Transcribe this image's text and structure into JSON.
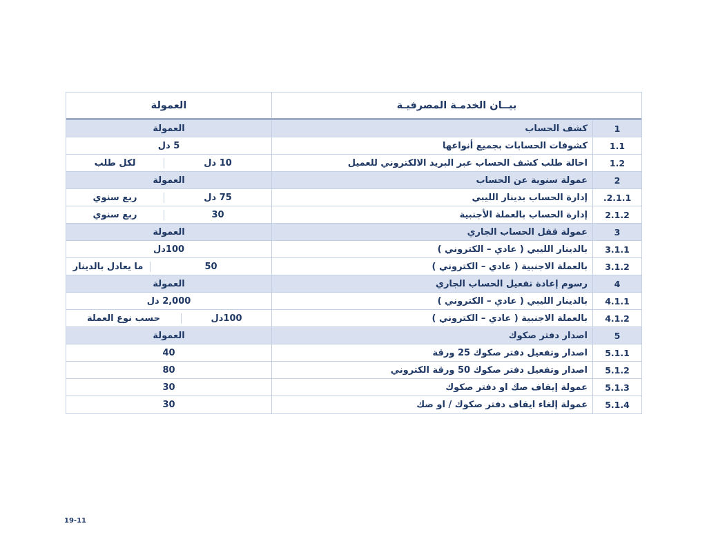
{
  "page": {
    "number_label": "19-11"
  },
  "colors": {
    "text": "#1f3864",
    "section_row_shade": "#d9e1f1",
    "grid_line": "#c3cfe2",
    "header_rule": "#9dadc7"
  },
  "table": {
    "header": {
      "fee": "العمولة",
      "service": "بيــان الخدمـة المصرفيـة"
    },
    "rows": [
      {
        "num": "1",
        "service": "كشف الحساب",
        "fee": {
          "value": "العمولة"
        },
        "section": true
      },
      {
        "num": "1.1",
        "service": "كشوفات الحسابات بجميع أنواعها",
        "fee": {
          "value": "5 دل"
        },
        "section": false
      },
      {
        "num": "1.2",
        "service": "احالة طلب كشف الحساب عبر البريد الالكتروني للعميل",
        "fee": {
          "value": "10 دل",
          "note": "لكل طلب"
        },
        "section": false
      },
      {
        "num": "2",
        "service": "عمولة سنوية عن الحساب",
        "fee": {
          "value": "العمولة"
        },
        "section": true
      },
      {
        "num": "2.1.1.",
        "service": "إدارة الحساب بدينار الليبي",
        "fee": {
          "value": "75 دل",
          "note": "ربع سنوي"
        },
        "section": false
      },
      {
        "num": "2.1.2",
        "service": "إدارة الحساب بالعملة الأجنبية",
        "fee": {
          "value": "30",
          "note": "ربع سنوي"
        },
        "section": false
      },
      {
        "num": "3",
        "service": "عمولة قفل الحساب الجاري",
        "fee": {
          "value": "العمولة"
        },
        "section": true
      },
      {
        "num": "3.1.1",
        "service": "بالدينار الليبي ( عادي – الكتروني )",
        "fee": {
          "value": "100دل"
        },
        "section": false
      },
      {
        "num": "3.1.2",
        "service": "بالعملة الاجنبية   ( عادي – الكتروني )",
        "fee": {
          "value": "50",
          "note": "ما يعادل بالدينار"
        },
        "section": false
      },
      {
        "num": "4",
        "service": "رسوم إعادة تفعيل الحساب الجاري",
        "fee": {
          "value": "العمولة"
        },
        "section": true
      },
      {
        "num": "4.1.1",
        "service": "بالدينار الليبي ( عادي – الكتروني )",
        "fee": {
          "value": "2,000 دل"
        },
        "section": false
      },
      {
        "num": "4.1.2",
        "service": "بالعملة الاجنبية  ( عادي – الكتروني )",
        "fee": {
          "value": "100دل",
          "note": "حسب نوع العملة"
        },
        "section": false
      },
      {
        "num": "5",
        "service": "اصدار دفتر صكوك",
        "fee": {
          "value": "العمولة"
        },
        "section": true
      },
      {
        "num": "5.1.1",
        "service": "اصدار وتفعيل دفتر صكوك 25 ورقة",
        "fee": {
          "value": "40"
        },
        "section": false
      },
      {
        "num": "5.1.2",
        "service": "اصدار وتفعيل دفتر صكوك 50 ورقة الكتروني",
        "fee": {
          "value": "80"
        },
        "section": false
      },
      {
        "num": "5.1.3",
        "service": "عمولة إيقاف صك  او دفتر صكوك",
        "fee": {
          "value": "30"
        },
        "section": false
      },
      {
        "num": "5.1.4",
        "service": "عمولة إلغاء ايقاف دفتر صكوك / او صك",
        "fee": {
          "value": "30"
        },
        "section": false
      }
    ]
  }
}
